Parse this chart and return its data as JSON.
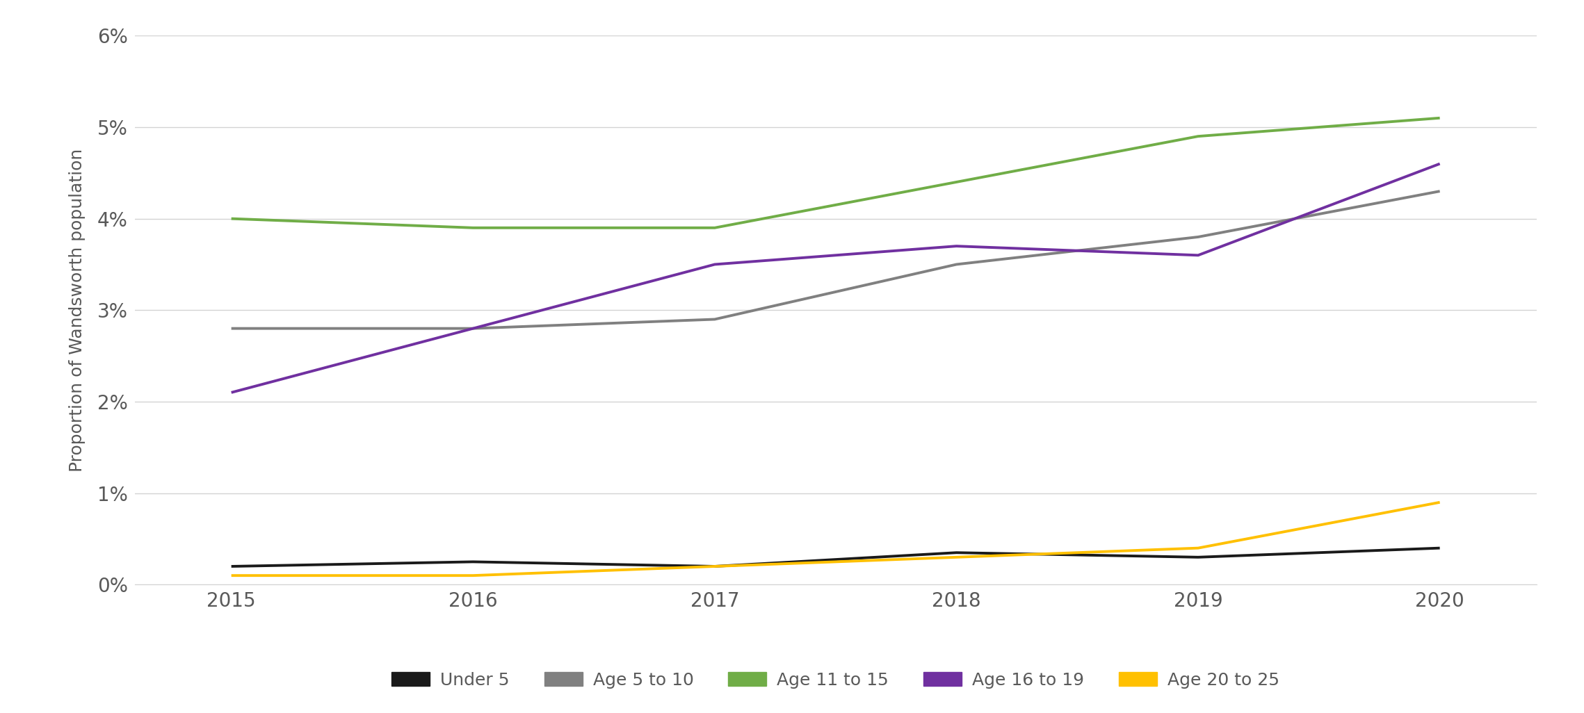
{
  "years": [
    2015,
    2016,
    2017,
    2018,
    2019,
    2020
  ],
  "series": {
    "Under 5": [
      0.002,
      0.0025,
      0.002,
      0.0035,
      0.003,
      0.004
    ],
    "Age 5 to 10": [
      0.028,
      0.028,
      0.029,
      0.035,
      0.038,
      0.043
    ],
    "Age 11 to 15": [
      0.04,
      0.039,
      0.039,
      0.044,
      0.049,
      0.051
    ],
    "Age 16 to 19": [
      0.021,
      0.028,
      0.035,
      0.037,
      0.036,
      0.046
    ],
    "Age 20 to 25": [
      0.001,
      0.001,
      0.002,
      0.003,
      0.004,
      0.009
    ]
  },
  "colors": {
    "Under 5": "#1a1a1a",
    "Age 5 to 10": "#808080",
    "Age 11 to 15": "#70ad47",
    "Age 16 to 19": "#7030a0",
    "Age 20 to 25": "#ffc000"
  },
  "ylabel": "Proportion of Wandsworth population",
  "ylim": [
    0,
    0.06
  ],
  "yticks": [
    0.0,
    0.01,
    0.02,
    0.03,
    0.04,
    0.05,
    0.06
  ],
  "background_color": "#ffffff",
  "grid_color": "#d3d3d3",
  "line_width": 2.8,
  "tick_color": "#595959",
  "legend_order": [
    "Under 5",
    "Age 5 to 10",
    "Age 11 to 15",
    "Age 16 to 19",
    "Age 20 to 25"
  ]
}
